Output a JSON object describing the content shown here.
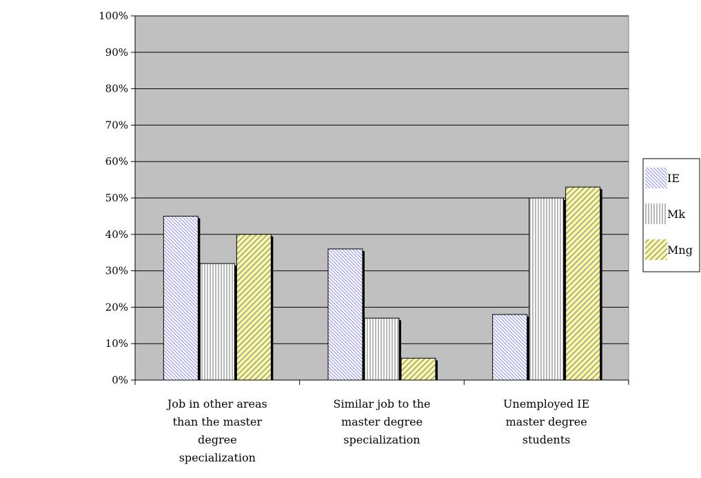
{
  "chart_data": {
    "type": "bar",
    "title": "",
    "xlabel": "",
    "ylabel": "",
    "ylim": [
      0,
      100
    ],
    "y_ticks": [
      "0%",
      "10%",
      "20%",
      "30%",
      "40%",
      "50%",
      "60%",
      "70%",
      "80%",
      "90%",
      "100%"
    ],
    "y_unit": "%",
    "grid": true,
    "legend_position": "right",
    "plot_background": "#c0c0c0",
    "categories": [
      [
        "Job in other areas",
        "than the master",
        "degree",
        "specialization"
      ],
      [
        "Similar job to the",
        "master degree",
        "specialization"
      ],
      [
        "Unemployed IE",
        "master degree",
        "students"
      ]
    ],
    "series": [
      {
        "name": "IE",
        "values": [
          45,
          36,
          18
        ],
        "pattern": "diagonal-down",
        "color": "#9999ff"
      },
      {
        "name": "Mk",
        "values": [
          32,
          17,
          50
        ],
        "pattern": "vertical",
        "color": "#808080"
      },
      {
        "name": "Mng",
        "values": [
          40,
          6,
          53
        ],
        "pattern": "diagonal-up",
        "color": "#ffff99"
      }
    ]
  }
}
